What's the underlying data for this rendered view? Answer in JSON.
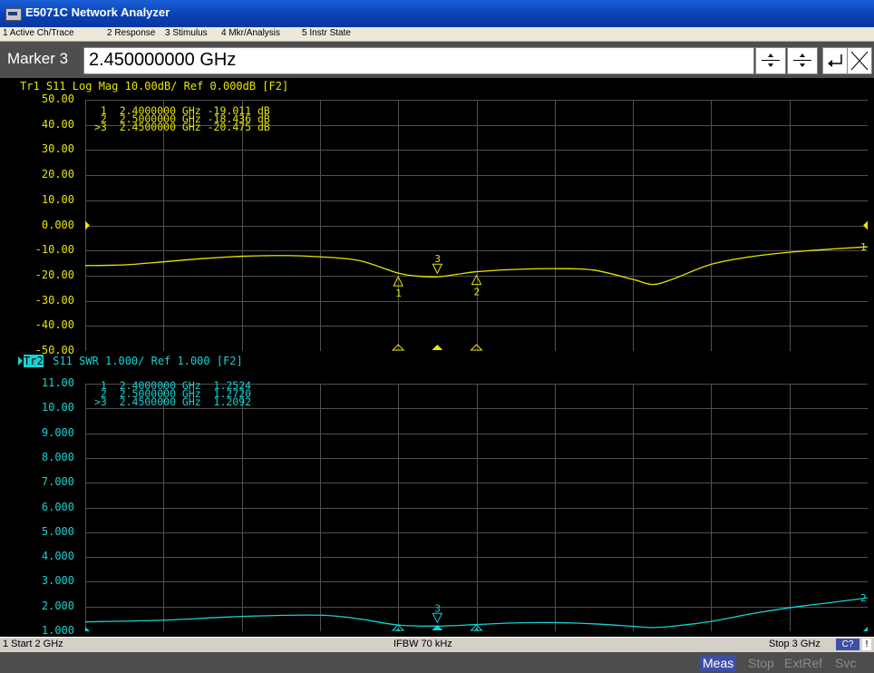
{
  "window": {
    "title": "E5071C Network Analyzer"
  },
  "menu": [
    "1 Active Ch/Trace",
    "2 Response",
    "3 Stimulus",
    "4 Mkr/Analysis",
    "5 Instr State"
  ],
  "entry": {
    "label": "Marker 3",
    "value": "2.450000000 GHz"
  },
  "trace1": {
    "header": "Tr1 S11 Log Mag 10.00dB/ Ref 0.000dB [F2]",
    "color": "#e6e600",
    "ytick_labels": [
      "50.00",
      "40.00",
      "30.00",
      "20.00",
      "10.00",
      "0.000",
      "-10.00",
      "-20.00",
      "-30.00",
      "-40.00",
      "-50.00"
    ],
    "markers": [
      {
        "line": " 1  2.4000000 GHz -19.011 dB"
      },
      {
        "line": " 2  2.5000000 GHz -18.436 dB"
      },
      {
        "line": ">3  2.4500000 GHz -20.475 dB"
      }
    ],
    "marker_ids": [
      "1",
      "2",
      "3"
    ],
    "trace_end_label": "1"
  },
  "trace2": {
    "tag": "Tr2",
    "header": " S11 SWR 1.000/ Ref 1.000 [F2]",
    "color": "#16d2d2",
    "ytick_labels": [
      "11.00",
      "10.00",
      "9.000",
      "8.000",
      "7.000",
      "6.000",
      "5.000",
      "4.000",
      "3.000",
      "2.000",
      "1.000"
    ],
    "markers": [
      {
        "line": " 1  2.4000000 GHz  1.2524"
      },
      {
        "line": " 2  2.5000000 GHz  1.2720"
      },
      {
        "line": ">3  2.4500000 GHz  1.2092"
      }
    ],
    "marker_ids": [
      "1",
      "2",
      "3"
    ],
    "trace_end_label": "2"
  },
  "chart_data": [
    {
      "type": "line",
      "title": "Tr1 S11 Log Mag 10.00dB/ Ref 0.000dB [F2]",
      "xlim": [
        2.0,
        3.0
      ],
      "ylim": [
        -50,
        50
      ],
      "grid": true,
      "series": [
        {
          "x": [
            2.0,
            2.05,
            2.1,
            2.15,
            2.2,
            2.25,
            2.3,
            2.35,
            2.4,
            2.425,
            2.45,
            2.475,
            2.5,
            2.55,
            2.6,
            2.65,
            2.7,
            2.725,
            2.75,
            2.8,
            2.85,
            2.9,
            2.95,
            3.0
          ],
          "values": [
            -16,
            -15.7,
            -14.5,
            -13.2,
            -12.3,
            -12.0,
            -12.5,
            -14.0,
            -19.011,
            -20.2,
            -20.475,
            -19.5,
            -18.436,
            -17.5,
            -17.2,
            -17.8,
            -21.5,
            -23.5,
            -21.5,
            -15.5,
            -12.5,
            -10.7,
            -9.5,
            -8.5
          ]
        }
      ],
      "markers": [
        {
          "id": "1",
          "x": 2.4,
          "y": -19.011
        },
        {
          "id": "2",
          "x": 2.5,
          "y": -18.436
        },
        {
          "id": "3",
          "x": 2.45,
          "y": -20.475
        }
      ]
    },
    {
      "type": "line",
      "title": "S11 SWR 1.000/ Ref 1.000 [F2]",
      "xlim": [
        2.0,
        3.0
      ],
      "ylim": [
        1,
        11
      ],
      "grid": true,
      "series": [
        {
          "x": [
            2.0,
            2.1,
            2.2,
            2.3,
            2.35,
            2.4,
            2.45,
            2.5,
            2.55,
            2.6,
            2.65,
            2.7,
            2.725,
            2.75,
            2.8,
            2.85,
            2.9,
            2.95,
            3.0
          ],
          "values": [
            1.38,
            1.45,
            1.6,
            1.65,
            1.5,
            1.2524,
            1.2092,
            1.272,
            1.34,
            1.35,
            1.3,
            1.2,
            1.15,
            1.2,
            1.4,
            1.7,
            1.95,
            2.15,
            2.35
          ]
        }
      ],
      "markers": [
        {
          "id": "1",
          "x": 2.4,
          "y": 1.2524
        },
        {
          "id": "2",
          "x": 2.5,
          "y": 1.272
        },
        {
          "id": "3",
          "x": 2.45,
          "y": 1.2092
        }
      ]
    }
  ],
  "status": {
    "start": "1 Start 2 GHz",
    "ifbw": "IFBW 70 kHz",
    "stop": "Stop 3 GHz",
    "badge": "C?",
    "flag": "!"
  },
  "instr": [
    "Meas",
    "Stop",
    "ExtRef",
    "Svc"
  ]
}
